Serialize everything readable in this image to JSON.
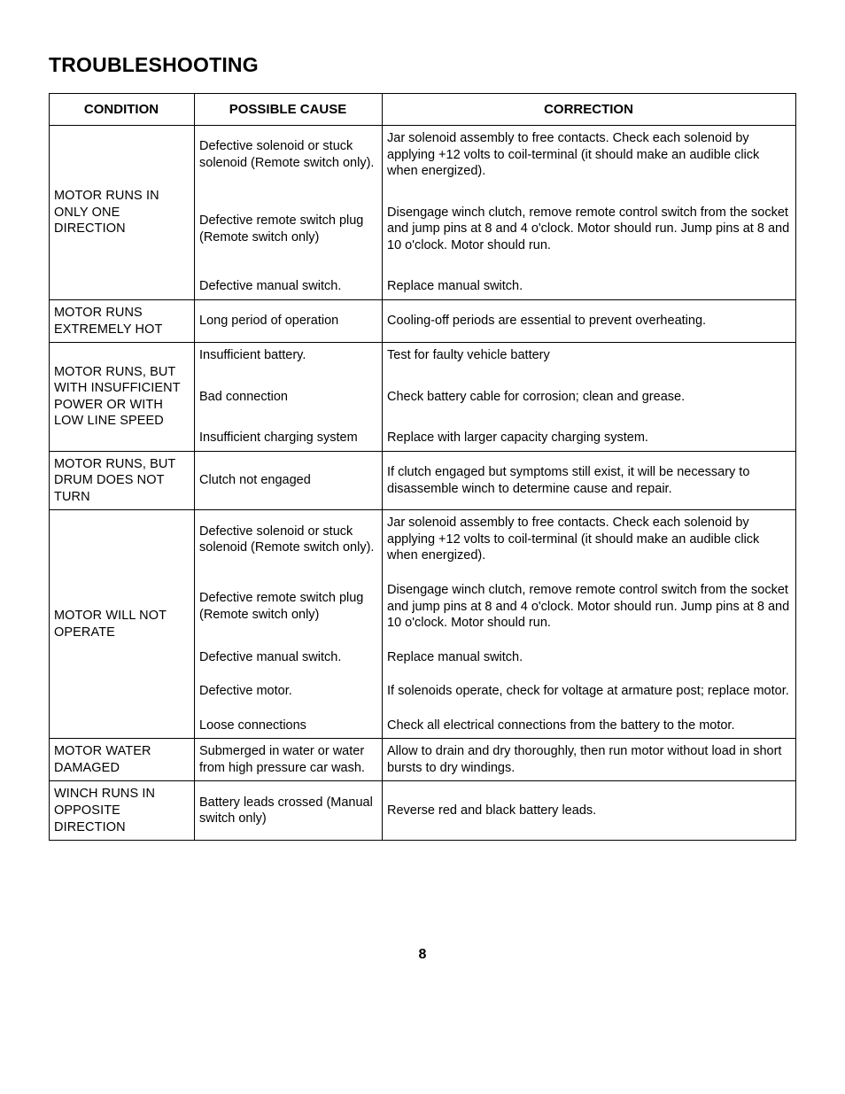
{
  "title": "TROUBLESHOOTING",
  "columns": [
    "CONDITION",
    "POSSIBLE CAUSE",
    "CORRECTION"
  ],
  "page_number": "8",
  "groups": [
    {
      "condition": "MOTOR RUNS IN ONLY ONE DIRECTION",
      "rows": [
        {
          "cause": "Defective solenoid or stuck solenoid (Remote switch only).",
          "correction": "Jar solenoid assembly to free contacts. Check each solenoid by applying +12 volts to coil-terminal (it should make an audible click when energized)."
        },
        {
          "cause": "Defective remote switch plug (Remote switch only)",
          "correction": "Disengage winch clutch, remove remote control switch from the socket and jump pins at 8 and 4 o'clock. Motor should run. Jump pins at 8 and 10 o'clock. Motor should run."
        },
        {
          "cause": "Defective manual switch.",
          "correction": "Replace manual switch."
        }
      ]
    },
    {
      "condition": "MOTOR RUNS EXTREMELY HOT",
      "rows": [
        {
          "cause": "Long period of operation",
          "correction": "Cooling-off periods are essential to prevent overheating."
        }
      ]
    },
    {
      "condition": "MOTOR RUNS, BUT WITH INSUFFICIENT POWER OR WITH LOW LINE SPEED",
      "rows": [
        {
          "cause": "Insufficient battery.",
          "correction": "Test for faulty vehicle battery"
        },
        {
          "cause": "Bad connection",
          "correction": "Check battery cable for corrosion; clean and grease."
        },
        {
          "cause": "Insufficient charging system",
          "correction": "Replace with larger capacity charging system."
        }
      ]
    },
    {
      "condition": "MOTOR RUNS, BUT DRUM DOES NOT TURN",
      "rows": [
        {
          "cause": "Clutch not engaged",
          "correction": "If clutch engaged but symptoms still exist, it will be necessary to disassemble winch to determine cause and repair."
        }
      ]
    },
    {
      "condition": "MOTOR WILL NOT OPERATE",
      "rows": [
        {
          "cause": "Defective solenoid or stuck solenoid (Remote switch only).",
          "correction": "Jar solenoid assembly to free contacts. Check each solenoid by applying +12 volts to coil-terminal (it should make an audible click when energized)."
        },
        {
          "cause": "Defective remote switch plug (Remote switch only)",
          "correction": "Disengage winch clutch, remove remote control switch from the socket and jump pins at 8 and 4 o'clock. Motor should run. Jump pins at 8 and 10 o'clock. Motor should run."
        },
        {
          "cause": "Defective manual switch.",
          "correction": "Replace manual switch."
        },
        {
          "cause": "Defective motor.",
          "correction": "If solenoids operate, check for voltage at armature post; replace motor."
        },
        {
          "cause": "Loose connections",
          "correction": "Check all electrical connections from the battery to the motor."
        }
      ]
    },
    {
      "condition": "MOTOR WATER DAMAGED",
      "rows": [
        {
          "cause": "Submerged in water or water from high pressure car wash.",
          "correction": "Allow to drain and dry thoroughly, then run motor without load in short bursts to dry windings."
        }
      ]
    },
    {
      "condition": "WINCH RUNS IN OPPOSITE DIRECTION",
      "rows": [
        {
          "cause": "Battery leads crossed (Manual switch only)",
          "correction": "Reverse red and black battery leads."
        }
      ]
    }
  ]
}
